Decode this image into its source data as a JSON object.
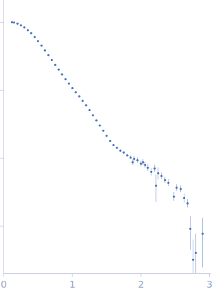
{
  "chart_data": {
    "type": "scatter",
    "x": [
      0.12,
      0.15,
      0.2,
      0.25,
      0.3,
      0.35,
      0.4,
      0.45,
      0.5,
      0.55,
      0.6,
      0.65,
      0.7,
      0.75,
      0.8,
      0.85,
      0.9,
      0.95,
      1.0,
      1.05,
      1.1,
      1.15,
      1.2,
      1.25,
      1.3,
      1.35,
      1.4,
      1.45,
      1.5,
      1.55,
      1.6,
      1.65,
      1.7,
      1.75,
      1.8,
      1.85,
      1.88,
      1.9,
      1.95,
      2.0,
      2.03,
      2.06,
      2.1,
      2.15,
      2.2,
      2.22,
      2.25,
      2.3,
      2.35,
      2.4,
      2.48,
      2.52,
      2.58,
      2.63,
      2.68,
      2.72,
      2.76,
      2.8,
      2.9
    ],
    "values": [
      1.0,
      0.989,
      0.955,
      0.901,
      0.84,
      0.765,
      0.689,
      0.607,
      0.528,
      0.454,
      0.385,
      0.327,
      0.278,
      0.236,
      0.201,
      0.171,
      0.145,
      0.125,
      0.107,
      0.0933,
      0.0811,
      0.0697,
      0.06,
      0.0509,
      0.0428,
      0.036,
      0.0302,
      0.0254,
      0.0213,
      0.0179,
      0.0156,
      0.0142,
      0.0129,
      0.0121,
      0.011,
      0.0102,
      0.00869,
      0.00977,
      0.00933,
      0.0083,
      0.00869,
      0.00792,
      0.00722,
      0.00628,
      0.00705,
      0.00394,
      0.006,
      0.00546,
      0.00475,
      0.00433,
      0.00272,
      0.00368,
      0.00351,
      0.00259,
      0.00216,
      0.000912,
      0.00032,
      0.000404,
      0.000774
    ],
    "errors": [
      0.005,
      0.005,
      0.005,
      0.005,
      0.004,
      0.004,
      0.003,
      0.003,
      0.003,
      0.002,
      0.002,
      0.002,
      0.001,
      0.001,
      0.001,
      0.001,
      0.001,
      0.001,
      0.0005,
      0.0005,
      0.0005,
      0.0004,
      0.0004,
      0.0003,
      0.0003,
      0.0003,
      0.0002,
      0.0002,
      0.0002,
      0.0002,
      0.0003,
      0.0004,
      0.0004,
      0.0005,
      0.0005,
      0.0006,
      0.0008,
      0.0009,
      0.0009,
      0.0008,
      0.0009,
      0.0008,
      0.0008,
      0.0008,
      0.0009,
      0.0017,
      0.0012,
      0.0006,
      0.0005,
      0.0005,
      0.0004,
      0.0004,
      0.0004,
      0.0004,
      0.0003,
      0.00047,
      0.00031,
      0.00036,
      0.00053
    ],
    "color": "#4a72b8",
    "marker": "circle",
    "log": "y",
    "xlim": [
      0,
      3.02
    ],
    "xticks": [
      0,
      1,
      2,
      3
    ],
    "ylim": [
      0.0002,
      2.1
    ],
    "yticks": [
      0.001,
      0.01,
      0.1,
      1
    ],
    "tick_labels": "x",
    "grid": false
  }
}
